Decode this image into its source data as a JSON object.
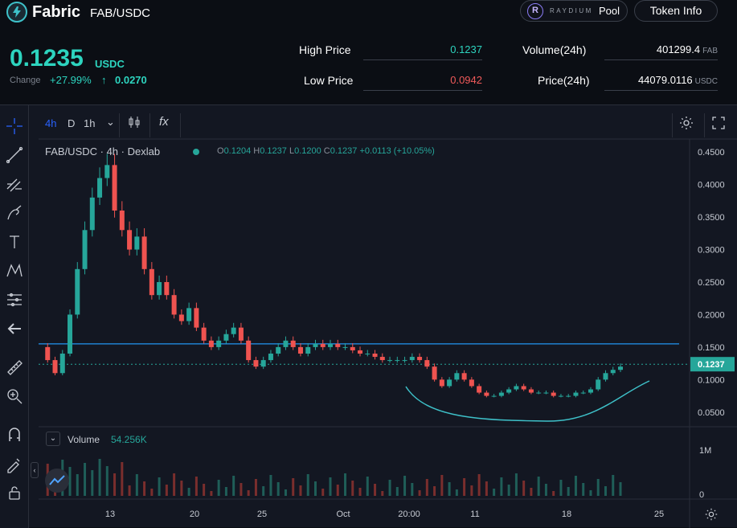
{
  "header": {
    "app_name": "Fabric",
    "pair": "FAB/USDC",
    "pool_brand": "RAYDIUM",
    "pool_label": "Pool",
    "token_info_label": "Token Info"
  },
  "stats": {
    "price": "0.1235",
    "price_unit": "USDC",
    "change_label": "Change",
    "change_pct": "+27.99%",
    "change_value": "0.0270",
    "high_label": "High Price",
    "high_value": "0.1237",
    "low_label": "Low Price",
    "low_value": "0.0942",
    "volume_label": "Volume(24h)",
    "volume_value": "401299.4",
    "volume_unit": "FAB",
    "price24_label": "Price(24h)",
    "price24_value": "44079.0116",
    "price24_unit": "USDC",
    "colors": {
      "up": "#2dd4bf",
      "down": "#f05a5a"
    }
  },
  "toolbar": {
    "interval": "4h",
    "day": "D",
    "hour": "1h",
    "fx": "fx"
  },
  "chart": {
    "legend_symbol": "FAB/USDC · 4h · Dexlab",
    "ohlc": {
      "o_label": "O",
      "o": "0.1204",
      "h_label": "H",
      "h": "0.1237",
      "l_label": "L",
      "l": "0.1200",
      "c_label": "C",
      "c": "0.1237",
      "chg": "+0.0113 (+10.05%)"
    },
    "volume_label": "Volume",
    "volume_value": "54.256K"
  },
  "chart_data": {
    "type": "candlestick",
    "y_ticks": [
      "0.4500",
      "0.4000",
      "0.3500",
      "0.3000",
      "0.2500",
      "0.2000",
      "0.1500",
      "0.1000",
      "0.0500"
    ],
    "y_tick_values": [
      0.45,
      0.4,
      0.35,
      0.3,
      0.25,
      0.2,
      0.15,
      0.1,
      0.05
    ],
    "ylim": [
      0.03,
      0.47
    ],
    "x_ticks": [
      "13",
      "20",
      "25",
      "Oct",
      "20:00",
      "11",
      "18",
      "25"
    ],
    "last_price_label": "0.1237",
    "last_price": 0.1237,
    "horizontal_line": 0.155,
    "volume_ticks": [
      "1M",
      "0"
    ],
    "path": [
      [
        0,
        0.15
      ],
      [
        2,
        0.13
      ],
      [
        4,
        0.11
      ],
      [
        6,
        0.14
      ],
      [
        8,
        0.2
      ],
      [
        10,
        0.27
      ],
      [
        12,
        0.33
      ],
      [
        14,
        0.38
      ],
      [
        16,
        0.41
      ],
      [
        18,
        0.43
      ],
      [
        20,
        0.36
      ],
      [
        22,
        0.33
      ],
      [
        24,
        0.3
      ],
      [
        26,
        0.32
      ],
      [
        28,
        0.27
      ],
      [
        30,
        0.23
      ],
      [
        32,
        0.25
      ],
      [
        34,
        0.23
      ],
      [
        36,
        0.2
      ],
      [
        38,
        0.19
      ],
      [
        40,
        0.21
      ],
      [
        42,
        0.18
      ],
      [
        44,
        0.16
      ],
      [
        46,
        0.15
      ],
      [
        48,
        0.16
      ],
      [
        50,
        0.17
      ],
      [
        52,
        0.18
      ],
      [
        54,
        0.16
      ],
      [
        56,
        0.13
      ],
      [
        58,
        0.12
      ],
      [
        60,
        0.13
      ],
      [
        62,
        0.14
      ],
      [
        64,
        0.15
      ],
      [
        66,
        0.16
      ],
      [
        68,
        0.15
      ],
      [
        70,
        0.14
      ],
      [
        72,
        0.15
      ],
      [
        74,
        0.155
      ],
      [
        76,
        0.15
      ],
      [
        78,
        0.155
      ],
      [
        80,
        0.15
      ],
      [
        82,
        0.15
      ],
      [
        84,
        0.145
      ],
      [
        86,
        0.14
      ],
      [
        88,
        0.14
      ],
      [
        90,
        0.135
      ],
      [
        92,
        0.13
      ],
      [
        94,
        0.13
      ],
      [
        96,
        0.13
      ],
      [
        98,
        0.13
      ],
      [
        100,
        0.135
      ],
      [
        102,
        0.13
      ],
      [
        104,
        0.12
      ],
      [
        106,
        0.1
      ],
      [
        108,
        0.09
      ],
      [
        110,
        0.1
      ],
      [
        112,
        0.11
      ],
      [
        114,
        0.1
      ],
      [
        116,
        0.09
      ],
      [
        118,
        0.08
      ],
      [
        120,
        0.075
      ],
      [
        122,
        0.075
      ],
      [
        124,
        0.08
      ],
      [
        126,
        0.085
      ],
      [
        128,
        0.09
      ],
      [
        130,
        0.085
      ],
      [
        132,
        0.08
      ],
      [
        134,
        0.08
      ],
      [
        136,
        0.08
      ],
      [
        138,
        0.075
      ],
      [
        140,
        0.075
      ],
      [
        142,
        0.075
      ],
      [
        144,
        0.08
      ],
      [
        146,
        0.08
      ],
      [
        148,
        0.085
      ],
      [
        150,
        0.1
      ],
      [
        152,
        0.11
      ],
      [
        154,
        0.115
      ],
      [
        156,
        0.12
      ]
    ]
  }
}
